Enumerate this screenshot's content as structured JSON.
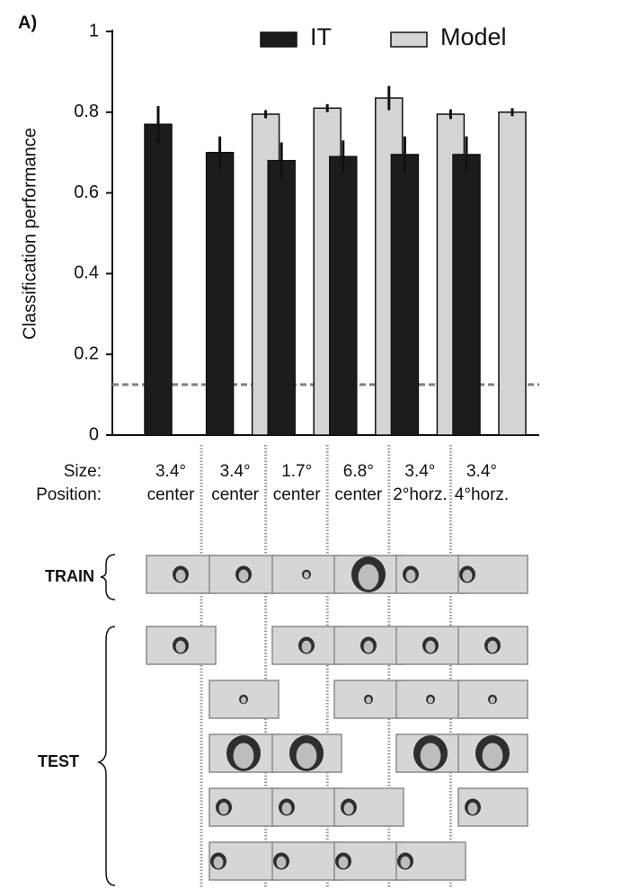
{
  "chart_data": {
    "type": "bar",
    "panel_label": "A)",
    "y_label": "Classification performance",
    "categories": [
      "3.4°",
      "3.4°",
      "1.7°",
      "6.8°",
      "3.4°",
      "3.4°"
    ],
    "positions": [
      "center",
      "center",
      "center",
      "center",
      "2°horz.",
      "4°horz."
    ],
    "row_labels": [
      "Size:",
      "Position:"
    ],
    "series": [
      {
        "name": "IT",
        "color": "#1c1c1c",
        "values": [
          0.77,
          0.7,
          0.68,
          0.69,
          0.695,
          0.695
        ],
        "errors": [
          0.045,
          0.04,
          0.045,
          0.04,
          0.045,
          0.045
        ]
      },
      {
        "name": "Model",
        "color": "#d4d4d4",
        "values": [
          null,
          0.795,
          0.81,
          0.835,
          0.795,
          0.8
        ],
        "errors": [
          null,
          0.01,
          0.01,
          0.03,
          0.012,
          0.01
        ]
      }
    ],
    "ylim": [
      0,
      1
    ],
    "yticks": [
      0,
      0.2,
      0.4,
      0.6,
      0.8,
      1
    ],
    "chance_level": 0.125,
    "chance_color": "#808080",
    "legend": "top"
  },
  "stimuli": {
    "train_label": "TRAIN",
    "test_label": "TEST"
  }
}
